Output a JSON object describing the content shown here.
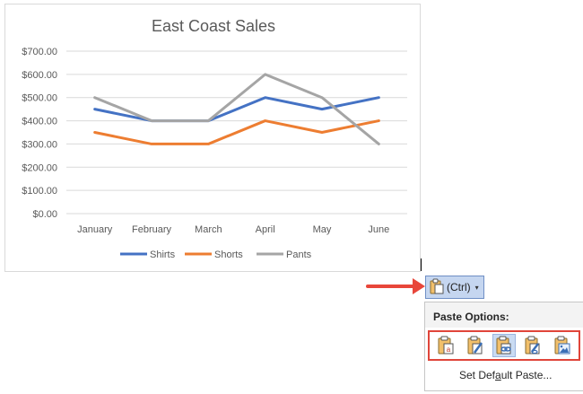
{
  "chart_data": {
    "type": "line",
    "title": "East Coast Sales",
    "categories": [
      "January",
      "February",
      "March",
      "April",
      "May",
      "June"
    ],
    "ylim": [
      0,
      700
    ],
    "yticks": [
      "$0.00",
      "$100.00",
      "$200.00",
      "$300.00",
      "$400.00",
      "$500.00",
      "$600.00",
      "$700.00"
    ],
    "grid": true,
    "legend_position": "bottom",
    "series": [
      {
        "name": "Shirts",
        "color": "#4472c4",
        "values": [
          450,
          400,
          400,
          500,
          450,
          500
        ]
      },
      {
        "name": "Shorts",
        "color": "#ed7d31",
        "values": [
          350,
          300,
          300,
          400,
          350,
          400
        ]
      },
      {
        "name": "Pants",
        "color": "#a5a5a5",
        "values": [
          500,
          400,
          400,
          600,
          500,
          300
        ]
      }
    ]
  },
  "paste_button": {
    "label": "(Ctrl)",
    "caret": "▾",
    "icon": "clipboard-icon"
  },
  "paste_menu": {
    "header": "Paste Options:",
    "options": [
      {
        "name": "use-destination-theme",
        "icon": "clipboard-text-icon"
      },
      {
        "name": "keep-source-formatting",
        "icon": "clipboard-brush-icon"
      },
      {
        "name": "use-destination-theme-link",
        "icon": "clipboard-link-icon",
        "selected": true
      },
      {
        "name": "keep-source-formatting-link",
        "icon": "clipboard-brush-link-icon"
      },
      {
        "name": "picture",
        "icon": "clipboard-picture-icon"
      }
    ],
    "set_default_pre": "Set Def",
    "set_default_accel": "a",
    "set_default_post": "ult Paste..."
  },
  "colors": {
    "accent_red": "#e8463a",
    "selection_blue": "#c5d6f0"
  }
}
